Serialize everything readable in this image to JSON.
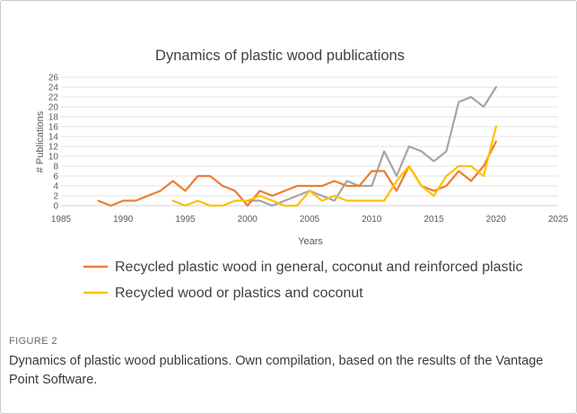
{
  "figure": {
    "label": "FIGURE 2",
    "caption": "Dynamics of plastic wood publications. Own compilation, based on the results of the Vantage Point Software."
  },
  "chart_data": {
    "type": "line",
    "title": "Dynamics of plastic wood publications",
    "xlabel": "Years",
    "ylabel": "# Publications",
    "xlim": [
      1985,
      2025
    ],
    "ylim": [
      0,
      26
    ],
    "x_ticks": [
      1985,
      1990,
      1995,
      2000,
      2005,
      2010,
      2015,
      2020,
      2025
    ],
    "y_ticks": [
      0,
      2,
      4,
      6,
      8,
      10,
      12,
      14,
      16,
      18,
      20,
      22,
      24,
      26
    ],
    "grid": true,
    "legend_position": "bottom",
    "series": [
      {
        "name": "",
        "color": "#a5a5a5",
        "points": [
          [
            2000,
            1
          ],
          [
            2001,
            1
          ],
          [
            2002,
            0
          ],
          [
            2005,
            3
          ],
          [
            2006,
            2
          ],
          [
            2007,
            1
          ],
          [
            2008,
            5
          ],
          [
            2009,
            4
          ],
          [
            2010,
            4
          ],
          [
            2011,
            11
          ],
          [
            2012,
            6
          ],
          [
            2013,
            12
          ],
          [
            2014,
            11
          ],
          [
            2015,
            9
          ],
          [
            2016,
            11
          ],
          [
            2017,
            21
          ],
          [
            2018,
            22
          ],
          [
            2019,
            20
          ],
          [
            2020,
            24
          ]
        ]
      },
      {
        "name": "Recycled plastic wood in general, coconut and reinforced plastic",
        "color": "#ed7d31",
        "points": [
          [
            1988,
            1
          ],
          [
            1989,
            0
          ],
          [
            1990,
            1
          ],
          [
            1991,
            1
          ],
          [
            1992,
            2
          ],
          [
            1993,
            3
          ],
          [
            1994,
            5
          ],
          [
            1995,
            3
          ],
          [
            1996,
            6
          ],
          [
            1997,
            6
          ],
          [
            1998,
            4
          ],
          [
            1999,
            3
          ],
          [
            2000,
            0
          ],
          [
            2001,
            3
          ],
          [
            2002,
            2
          ],
          [
            2003,
            3
          ],
          [
            2004,
            4
          ],
          [
            2005,
            4
          ],
          [
            2006,
            4
          ],
          [
            2007,
            5
          ],
          [
            2008,
            4
          ],
          [
            2009,
            4
          ],
          [
            2010,
            7
          ],
          [
            2011,
            7
          ],
          [
            2012,
            3
          ],
          [
            2013,
            8
          ],
          [
            2014,
            4
          ],
          [
            2015,
            3
          ],
          [
            2016,
            4
          ],
          [
            2017,
            7
          ],
          [
            2018,
            5
          ],
          [
            2019,
            8
          ],
          [
            2020,
            13
          ]
        ]
      },
      {
        "name": "Recycled wood or plastics and coconut",
        "color": "#ffc000",
        "points": [
          [
            1994,
            1
          ],
          [
            1995,
            0
          ],
          [
            1996,
            1
          ],
          [
            1997,
            0
          ],
          [
            1998,
            0
          ],
          [
            1999,
            1
          ],
          [
            2000,
            1
          ],
          [
            2001,
            2
          ],
          [
            2002,
            1
          ],
          [
            2003,
            0
          ],
          [
            2004,
            0
          ],
          [
            2005,
            3
          ],
          [
            2006,
            1
          ],
          [
            2007,
            2
          ],
          [
            2008,
            1
          ],
          [
            2009,
            1
          ],
          [
            2010,
            1
          ],
          [
            2011,
            1
          ],
          [
            2012,
            5
          ],
          [
            2013,
            8
          ],
          [
            2014,
            4
          ],
          [
            2015,
            2
          ],
          [
            2016,
            6
          ],
          [
            2017,
            8
          ],
          [
            2018,
            8
          ],
          [
            2019,
            6
          ],
          [
            2020,
            16
          ]
        ]
      }
    ]
  }
}
